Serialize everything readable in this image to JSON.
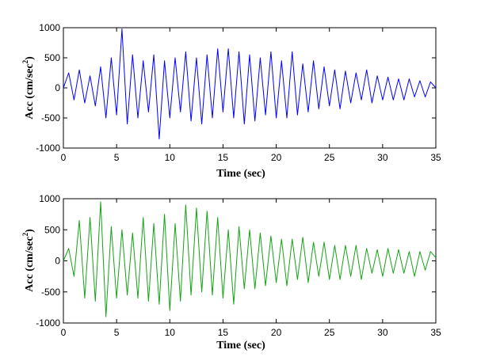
{
  "chart_data": [
    {
      "type": "line",
      "xlabel": "Time (sec)",
      "ylabel": "Acc (cm/sec",
      "ylabel_sup": "2",
      "ylabel_close": ")",
      "xlim": [
        0,
        35
      ],
      "ylim": [
        -1000,
        1000
      ],
      "xticks": [
        0,
        5,
        10,
        15,
        20,
        25,
        30,
        35
      ],
      "yticks": [
        1000,
        500,
        0,
        -500,
        -1000
      ],
      "grid": false,
      "color": "#0000ff",
      "series": [
        {
          "x": [
            0,
            0.5,
            1,
            1.5,
            2,
            2.5,
            3,
            3.5,
            4,
            4.5,
            5,
            5.5,
            6,
            6.5,
            7,
            7.5,
            8,
            8.5,
            9,
            9.5,
            10,
            10.5,
            11,
            11.5,
            12,
            12.5,
            13,
            13.5,
            14,
            14.5,
            15,
            15.5,
            16,
            16.5,
            17,
            17.5,
            18,
            18.5,
            19,
            19.5,
            20,
            20.5,
            21,
            21.5,
            22,
            22.5,
            23,
            23.5,
            24,
            24.5,
            25,
            25.5,
            26,
            26.5,
            27,
            27.5,
            28,
            28.5,
            29,
            29.5,
            30,
            30.5,
            31,
            31.5,
            32,
            32.5,
            33,
            33.5,
            34,
            34.5,
            35
          ],
          "y": [
            0,
            250,
            -200,
            300,
            -250,
            200,
            -300,
            350,
            -500,
            500,
            -450,
            980,
            -600,
            550,
            -500,
            450,
            -400,
            550,
            -850,
            450,
            -500,
            500,
            -400,
            600,
            -550,
            500,
            -600,
            550,
            -500,
            650,
            -400,
            650,
            -500,
            600,
            -600,
            550,
            -550,
            500,
            -450,
            600,
            -500,
            450,
            -500,
            600,
            -450,
            400,
            -400,
            450,
            -350,
            350,
            -300,
            300,
            -350,
            280,
            -250,
            250,
            -200,
            300,
            -250,
            200,
            -200,
            180,
            -200,
            150,
            -200,
            150,
            -150,
            120,
            -150,
            100,
            0
          ]
        }
      ]
    },
    {
      "type": "line",
      "xlabel": "Time (sec)",
      "ylabel": "Acc (cm/sec",
      "ylabel_sup": "2",
      "ylabel_close": ")",
      "xlim": [
        0,
        35
      ],
      "ylim": [
        -1000,
        1000
      ],
      "xticks": [
        0,
        5,
        10,
        15,
        20,
        25,
        30,
        35
      ],
      "yticks": [
        1000,
        500,
        0,
        -500,
        -1000
      ],
      "grid": false,
      "color": "#13a313",
      "series": [
        {
          "x": [
            0,
            0.5,
            1,
            1.5,
            2,
            2.5,
            3,
            3.5,
            4,
            4.5,
            5,
            5.5,
            6,
            6.5,
            7,
            7.5,
            8,
            8.5,
            9,
            9.5,
            10,
            10.5,
            11,
            11.5,
            12,
            12.5,
            13,
            13.5,
            14,
            14.5,
            15,
            15.5,
            16,
            16.5,
            17,
            17.5,
            18,
            18.5,
            19,
            19.5,
            20,
            20.5,
            21,
            21.5,
            22,
            22.5,
            23,
            23.5,
            24,
            24.5,
            25,
            25.5,
            26,
            26.5,
            27,
            27.5,
            28,
            28.5,
            29,
            29.5,
            30,
            30.5,
            31,
            31.5,
            32,
            32.5,
            33,
            33.5,
            34,
            34.5,
            35
          ],
          "y": [
            0,
            200,
            -250,
            650,
            -600,
            700,
            -650,
            950,
            -900,
            550,
            -600,
            500,
            -550,
            450,
            -600,
            700,
            -650,
            600,
            -700,
            750,
            -800,
            600,
            -650,
            900,
            -550,
            850,
            -500,
            800,
            -550,
            700,
            -600,
            500,
            -700,
            550,
            -450,
            500,
            -450,
            450,
            -400,
            400,
            -350,
            350,
            -400,
            350,
            -300,
            380,
            -350,
            300,
            -250,
            300,
            -300,
            250,
            -300,
            250,
            -250,
            250,
            -300,
            200,
            -200,
            180,
            -250,
            200,
            -200,
            180,
            -200,
            150,
            -250,
            150,
            -150,
            150,
            50
          ]
        }
      ]
    }
  ]
}
